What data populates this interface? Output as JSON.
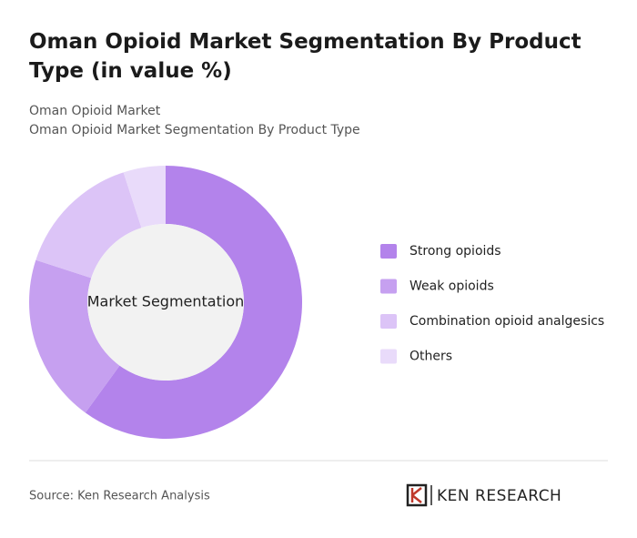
{
  "chart_data": {
    "type": "donut",
    "title": "Oman Opioid Market Segmentation By Product Type (in value %)",
    "breadcrumb": "Oman Opioid Market",
    "subtitle": "Oman Opioid Market Segmentation By Product Type",
    "center_label": "Market Segmentation",
    "categories": [
      "Strong opioids",
      "Weak opioids",
      "Combination opioid analgesics",
      "Others"
    ],
    "values": [
      60,
      20,
      15,
      5
    ],
    "colors": [
      "#b383eb",
      "#c6a0f0",
      "#dcc4f7",
      "#e9dbfa"
    ],
    "legend": "right"
  },
  "footer": {
    "source": "Source: Ken Research Analysis",
    "brand": "KEN RESEARCH"
  }
}
